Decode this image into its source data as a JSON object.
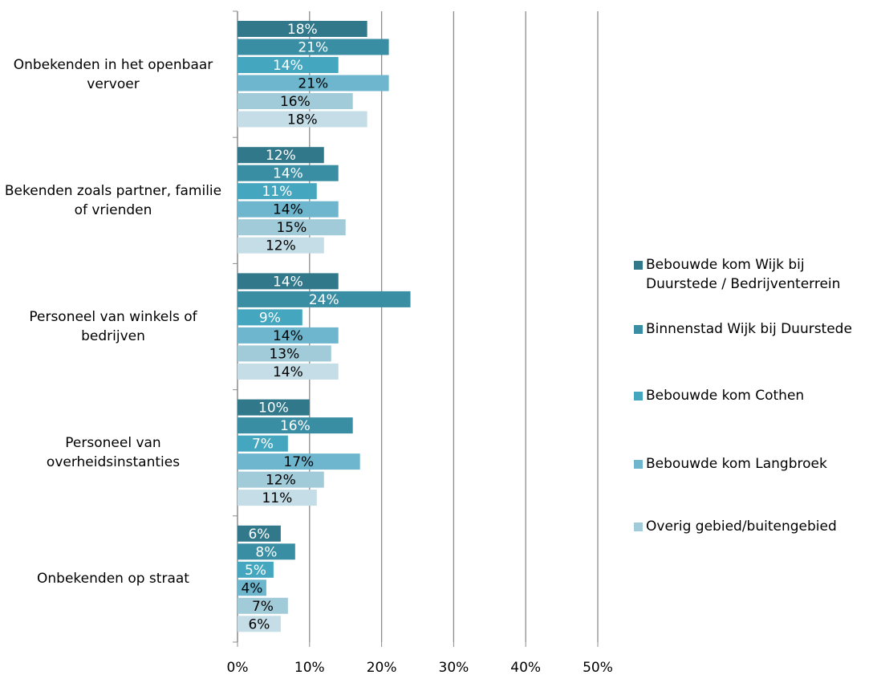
{
  "chart_data": {
    "type": "hbar",
    "categories": [
      "Onbekenden in het openbaar vervoer",
      "Bekenden zoals partner, familie of vrienden",
      "Personeel van winkels of bedrijven",
      "Personeel van overheidsinstanties",
      "Onbekenden op straat"
    ],
    "series": [
      {
        "name": "Bebouwde kom Wijk bij Duurstede / Bedrijventerrein",
        "color": "#31788a",
        "values": [
          18,
          12,
          14,
          10,
          6
        ],
        "value_labels": [
          "18%",
          "12%",
          "14%",
          "10%",
          "6%"
        ]
      },
      {
        "name": "Binnenstad Wijk bij Duurstede",
        "color": "#3a8ea4",
        "values": [
          21,
          14,
          24,
          16,
          8
        ],
        "value_labels": [
          "21%",
          "14%",
          "24%",
          "16%",
          "8%"
        ]
      },
      {
        "name": "Bebouwde kom Cothen",
        "color": "#45a7bf",
        "values": [
          14,
          11,
          9,
          7,
          5
        ],
        "value_labels": [
          "14%",
          "11%",
          "9%",
          "7%",
          "5%"
        ]
      },
      {
        "name": "Bebouwde kom Langbroek",
        "color": "#6db6ce",
        "values": [
          21,
          14,
          14,
          17,
          4
        ],
        "value_labels": [
          "21%",
          "14%",
          "14%",
          "17%",
          "4%"
        ]
      },
      {
        "name": "Overig gebied/buitengebied",
        "color": "#a2cbd9",
        "values": [
          16,
          15,
          13,
          12,
          7
        ],
        "value_labels": [
          "16%",
          "15%",
          "13%",
          "12%",
          "7%"
        ]
      },
      {
        "name": null,
        "color": "#c4dde6",
        "values": [
          18,
          12,
          14,
          11,
          6
        ],
        "value_labels": [
          "18%",
          "12%",
          "14%",
          "11%",
          "6%"
        ]
      }
    ],
    "xlim": [
      0,
      50
    ],
    "xticks": [
      {
        "value": 0,
        "label": "0%"
      },
      {
        "value": 10,
        "label": "10%"
      },
      {
        "value": 20,
        "label": "20%"
      },
      {
        "value": 30,
        "label": "30%"
      },
      {
        "value": 40,
        "label": "40%"
      },
      {
        "value": 50,
        "label": "50%"
      }
    ],
    "grid": true
  }
}
